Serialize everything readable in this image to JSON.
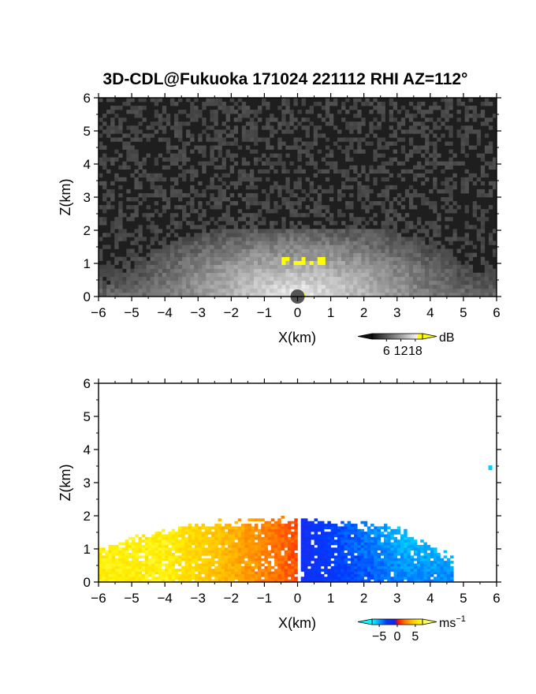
{
  "title": "3D-CDL@Fukuoka 171024 221112 RHI AZ=112°",
  "chart_data": [
    {
      "type": "heatmap",
      "panel": "reflectivity",
      "xlabel": "X(km)",
      "ylabel": "Z(km)",
      "xlim": [
        -6,
        6
      ],
      "ylim": [
        0,
        6
      ],
      "xticks": [
        "−6",
        "−5",
        "−4",
        "−3",
        "−2",
        "−1",
        "0",
        "1",
        "2",
        "3",
        "4",
        "5",
        "6"
      ],
      "yticks": [
        "0",
        "1",
        "2",
        "3",
        "4",
        "5",
        "6"
      ],
      "colorbar": {
        "unit": "dB",
        "ticks": [
          "6",
          "12",
          "18"
        ],
        "range": [
          0,
          21
        ],
        "colormap": "greyscale-to-yellow"
      },
      "features": {
        "echo_top_km": 2.0,
        "bright_patch": {
          "x_range": [
            -0.5,
            0.8
          ],
          "z_range": [
            0.9,
            1.15
          ],
          "value_dB": 19
        },
        "background_dB": 2
      },
      "colors": {
        "background": "#1e1e1e",
        "high": "#ffff00"
      }
    },
    {
      "type": "heatmap",
      "panel": "doppler_velocity",
      "xlabel": "X(km)",
      "ylabel": "Z(km)",
      "xlim": [
        -6,
        6
      ],
      "ylim": [
        0,
        6
      ],
      "xticks": [
        "−6",
        "−5",
        "−4",
        "−3",
        "−2",
        "−1",
        "0",
        "1",
        "2",
        "3",
        "4",
        "5",
        "6"
      ],
      "yticks": [
        "0",
        "1",
        "2",
        "3",
        "4",
        "5",
        "6"
      ],
      "colorbar": {
        "unit": "ms",
        "unit_sup": "−1",
        "ticks": [
          "−5",
          "0",
          "5"
        ],
        "range": [
          -7,
          7
        ],
        "colormap": "cyan-blue-red-yellow"
      },
      "features": {
        "left_side": {
          "x_range": [
            -6,
            0.1
          ],
          "velocity_ms": [
            1,
            6
          ],
          "max_height_km": 1.9
        },
        "right_side": {
          "x_range": [
            0.1,
            4.5
          ],
          "velocity_ms": [
            -6,
            -2
          ],
          "max_height_km": 1.9
        },
        "isolated_point": {
          "x": 5.8,
          "z": 3.45,
          "velocity_ms": -6
        }
      }
    }
  ]
}
